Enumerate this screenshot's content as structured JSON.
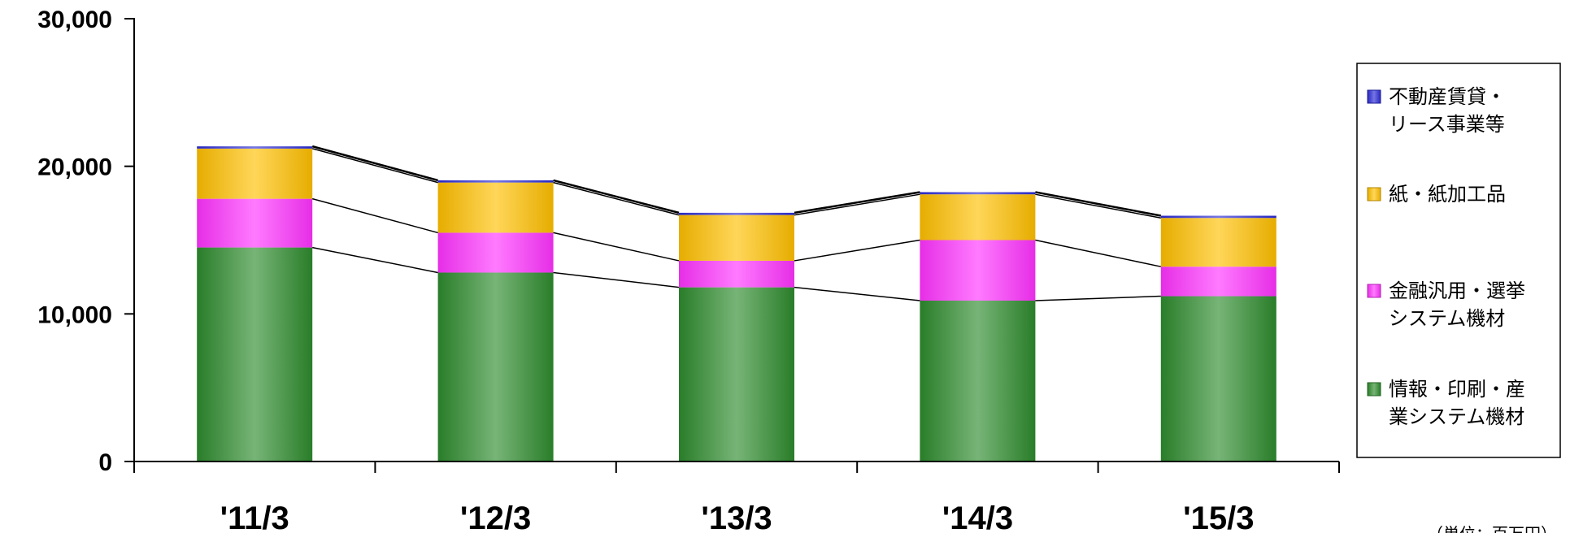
{
  "chart_data": {
    "type": "bar",
    "stacked": true,
    "categories": [
      "'11/3",
      "'12/3",
      "'13/3",
      "'14/3",
      "'15/3"
    ],
    "series": [
      {
        "name": "情報・印刷・産業システム機材",
        "legend_lines": [
          "情報・印刷・産",
          "業システム機材"
        ],
        "color": "#2e8b2e",
        "values": [
          14500,
          12800,
          11800,
          10900,
          11200
        ]
      },
      {
        "name": "金融汎用・選挙システム機材",
        "legend_lines": [
          "金融汎用・選挙",
          "システム機材"
        ],
        "color": "#ff33ff",
        "values": [
          3300,
          2700,
          1800,
          4100,
          2000
        ]
      },
      {
        "name": "紙・紙加工品",
        "legend_lines": [
          "紙・紙加工品"
        ],
        "color": "#ffc000",
        "values": [
          3400,
          3400,
          3100,
          3100,
          3300
        ]
      },
      {
        "name": "不動産賃貸・リース事業等",
        "legend_lines": [
          "不動産賃貸・",
          "リース事業等"
        ],
        "color": "#2b2bd6",
        "values": [
          150,
          150,
          150,
          150,
          150
        ]
      }
    ],
    "ylim": [
      0,
      30000
    ],
    "yticks": [
      "0",
      "10,000",
      "20,000",
      "30,000"
    ],
    "ytick_values": [
      0,
      10000,
      20000,
      30000
    ],
    "legend_position": "right",
    "unit_note": "（単位：百万円）",
    "series_lines": true
  }
}
